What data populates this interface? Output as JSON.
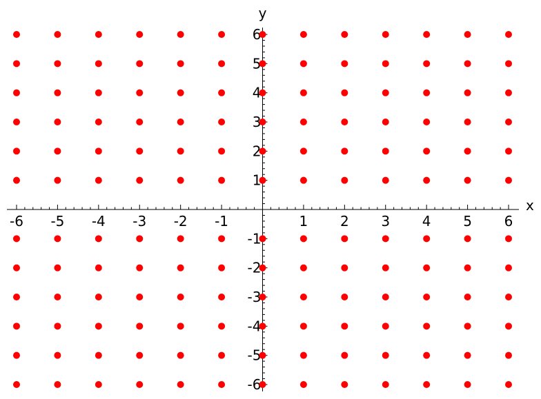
{
  "chart_data": {
    "type": "scatter",
    "title": "",
    "xlabel": "x",
    "ylabel": "y",
    "xlim": [
      -6,
      6
    ],
    "ylim": [
      -6,
      6
    ],
    "grid": false,
    "marker_color": "#ff0000",
    "x_ticks": [
      -6,
      -5,
      -4,
      -3,
      -2,
      -1,
      1,
      2,
      3,
      4,
      5,
      6
    ],
    "y_ticks": [
      -6,
      -5,
      -4,
      -3,
      -2,
      -1,
      1,
      2,
      3,
      4,
      5,
      6
    ],
    "x_tick_labels": [
      "-6",
      "-5",
      "-4",
      "-3",
      "-2",
      "-1",
      "1",
      "2",
      "3",
      "4",
      "5",
      "6"
    ],
    "y_tick_labels": [
      "-6",
      "-5",
      "-4",
      "-3",
      "-2",
      "-1",
      "1",
      "2",
      "3",
      "4",
      "5",
      "6"
    ],
    "series": [
      {
        "points": [
          [
            -6,
            -6
          ],
          [
            -5,
            -6
          ],
          [
            -4,
            -6
          ],
          [
            -3,
            -6
          ],
          [
            -2,
            -6
          ],
          [
            -1,
            -6
          ],
          [
            0,
            -6
          ],
          [
            1,
            -6
          ],
          [
            2,
            -6
          ],
          [
            3,
            -6
          ],
          [
            4,
            -6
          ],
          [
            5,
            -6
          ],
          [
            6,
            -6
          ],
          [
            -6,
            -5
          ],
          [
            -5,
            -5
          ],
          [
            -4,
            -5
          ],
          [
            -3,
            -5
          ],
          [
            -2,
            -5
          ],
          [
            -1,
            -5
          ],
          [
            0,
            -5
          ],
          [
            1,
            -5
          ],
          [
            2,
            -5
          ],
          [
            3,
            -5
          ],
          [
            4,
            -5
          ],
          [
            5,
            -5
          ],
          [
            6,
            -5
          ],
          [
            -6,
            -4
          ],
          [
            -5,
            -4
          ],
          [
            -4,
            -4
          ],
          [
            -3,
            -4
          ],
          [
            -2,
            -4
          ],
          [
            -1,
            -4
          ],
          [
            0,
            -4
          ],
          [
            1,
            -4
          ],
          [
            2,
            -4
          ],
          [
            3,
            -4
          ],
          [
            4,
            -4
          ],
          [
            5,
            -4
          ],
          [
            6,
            -4
          ],
          [
            -6,
            -3
          ],
          [
            -5,
            -3
          ],
          [
            -4,
            -3
          ],
          [
            -3,
            -3
          ],
          [
            -2,
            -3
          ],
          [
            -1,
            -3
          ],
          [
            0,
            -3
          ],
          [
            1,
            -3
          ],
          [
            2,
            -3
          ],
          [
            3,
            -3
          ],
          [
            4,
            -3
          ],
          [
            5,
            -3
          ],
          [
            6,
            -3
          ],
          [
            -6,
            -2
          ],
          [
            -5,
            -2
          ],
          [
            -4,
            -2
          ],
          [
            -3,
            -2
          ],
          [
            -2,
            -2
          ],
          [
            -1,
            -2
          ],
          [
            0,
            -2
          ],
          [
            1,
            -2
          ],
          [
            2,
            -2
          ],
          [
            3,
            -2
          ],
          [
            4,
            -2
          ],
          [
            5,
            -2
          ],
          [
            6,
            -2
          ],
          [
            -6,
            -1
          ],
          [
            -5,
            -1
          ],
          [
            -4,
            -1
          ],
          [
            -3,
            -1
          ],
          [
            -2,
            -1
          ],
          [
            -1,
            -1
          ],
          [
            0,
            -1
          ],
          [
            1,
            -1
          ],
          [
            2,
            -1
          ],
          [
            3,
            -1
          ],
          [
            4,
            -1
          ],
          [
            5,
            -1
          ],
          [
            6,
            -1
          ],
          [
            -6,
            1
          ],
          [
            -5,
            1
          ],
          [
            -4,
            1
          ],
          [
            -3,
            1
          ],
          [
            -2,
            1
          ],
          [
            -1,
            1
          ],
          [
            0,
            1
          ],
          [
            1,
            1
          ],
          [
            2,
            1
          ],
          [
            3,
            1
          ],
          [
            4,
            1
          ],
          [
            5,
            1
          ],
          [
            6,
            1
          ],
          [
            -6,
            2
          ],
          [
            -5,
            2
          ],
          [
            -4,
            2
          ],
          [
            -3,
            2
          ],
          [
            -2,
            2
          ],
          [
            -1,
            2
          ],
          [
            0,
            2
          ],
          [
            1,
            2
          ],
          [
            2,
            2
          ],
          [
            3,
            2
          ],
          [
            4,
            2
          ],
          [
            5,
            2
          ],
          [
            6,
            2
          ],
          [
            -6,
            3
          ],
          [
            -5,
            3
          ],
          [
            -4,
            3
          ],
          [
            -3,
            3
          ],
          [
            -2,
            3
          ],
          [
            -1,
            3
          ],
          [
            0,
            3
          ],
          [
            1,
            3
          ],
          [
            2,
            3
          ],
          [
            3,
            3
          ],
          [
            4,
            3
          ],
          [
            5,
            3
          ],
          [
            6,
            3
          ],
          [
            -6,
            4
          ],
          [
            -5,
            4
          ],
          [
            -4,
            4
          ],
          [
            -3,
            4
          ],
          [
            -2,
            4
          ],
          [
            -1,
            4
          ],
          [
            0,
            4
          ],
          [
            1,
            4
          ],
          [
            2,
            4
          ],
          [
            3,
            4
          ],
          [
            4,
            4
          ],
          [
            5,
            4
          ],
          [
            6,
            4
          ],
          [
            -6,
            5
          ],
          [
            -5,
            5
          ],
          [
            -4,
            5
          ],
          [
            -3,
            5
          ],
          [
            -2,
            5
          ],
          [
            -1,
            5
          ],
          [
            0,
            5
          ],
          [
            1,
            5
          ],
          [
            2,
            5
          ],
          [
            3,
            5
          ],
          [
            4,
            5
          ],
          [
            5,
            5
          ],
          [
            6,
            5
          ],
          [
            -6,
            6
          ],
          [
            -5,
            6
          ],
          [
            -4,
            6
          ],
          [
            -3,
            6
          ],
          [
            -2,
            6
          ],
          [
            -1,
            6
          ],
          [
            0,
            6
          ],
          [
            1,
            6
          ],
          [
            2,
            6
          ],
          [
            3,
            6
          ],
          [
            4,
            6
          ],
          [
            5,
            6
          ],
          [
            6,
            6
          ]
        ]
      }
    ]
  }
}
